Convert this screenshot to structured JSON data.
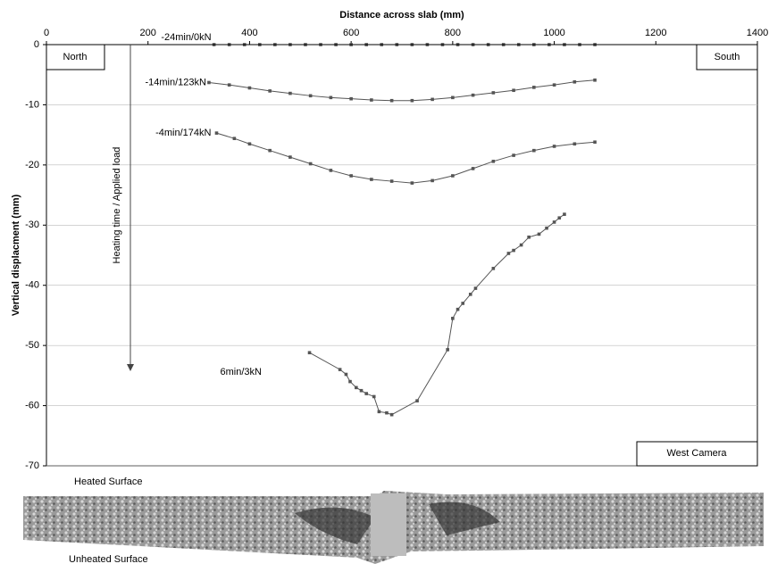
{
  "chart_data": {
    "type": "line",
    "x_label": "Distance across slab (mm)",
    "y_label": "Vertical displacment (mm)",
    "xlim": [
      0,
      1400
    ],
    "xticks": [
      0,
      200,
      400,
      600,
      800,
      1000,
      1200,
      1400
    ],
    "ylim": [
      -70,
      0
    ],
    "yticks": [
      0,
      -10,
      -20,
      -30,
      -40,
      -50,
      -60,
      -70
    ],
    "grid": true,
    "annotations": {
      "north": "North",
      "south": "South",
      "camera": "West Camera",
      "arrow": "Heating time / Applied load",
      "heated": "Heated Surface",
      "unheated": "Unheated Surface"
    },
    "series": [
      {
        "name": "-24min/0kN",
        "color": "#555555",
        "x": [
          330,
          360,
          390,
          420,
          450,
          480,
          510,
          540,
          570,
          600,
          630,
          660,
          690,
          720,
          750,
          780,
          810,
          840,
          870,
          900,
          930,
          960,
          990,
          1020,
          1050,
          1080
        ],
        "values": [
          0,
          0,
          0,
          0,
          0,
          0,
          0,
          0,
          0,
          0,
          0,
          0,
          0,
          0,
          0,
          0,
          0,
          0,
          0,
          0,
          0,
          0,
          0,
          0,
          0,
          0
        ]
      },
      {
        "name": "-14min/123kN",
        "color": "#555555",
        "x": [
          320,
          360,
          400,
          440,
          480,
          520,
          560,
          600,
          640,
          680,
          720,
          760,
          800,
          840,
          880,
          920,
          960,
          1000,
          1040,
          1080
        ],
        "values": [
          -6.3,
          -6.7,
          -7.2,
          -7.7,
          -8.1,
          -8.5,
          -8.8,
          -9.0,
          -9.2,
          -9.3,
          -9.3,
          -9.1,
          -8.8,
          -8.4,
          -8.0,
          -7.6,
          -7.1,
          -6.7,
          -6.2,
          -5.9
        ]
      },
      {
        "name": "-4min/174kN",
        "color": "#555555",
        "x": [
          335,
          370,
          400,
          440,
          480,
          520,
          560,
          600,
          640,
          680,
          720,
          760,
          800,
          840,
          880,
          920,
          960,
          1000,
          1040,
          1080
        ],
        "values": [
          -14.7,
          -15.6,
          -16.5,
          -17.6,
          -18.7,
          -19.8,
          -20.9,
          -21.8,
          -22.4,
          -22.7,
          -23.0,
          -22.6,
          -21.8,
          -20.6,
          -19.4,
          -18.4,
          -17.6,
          -16.9,
          -16.5,
          -16.2
        ]
      },
      {
        "name": "6min/3kN",
        "color": "#555555",
        "x": [
          518,
          578,
          590,
          598,
          610,
          620,
          630,
          645,
          655,
          670,
          680,
          730,
          790,
          800,
          810,
          820,
          835,
          845,
          880,
          910,
          920,
          935,
          950,
          970,
          985,
          1000,
          1010,
          1020
        ],
        "values": [
          -51.2,
          -54,
          -54.8,
          -56,
          -57,
          -57.5,
          -58,
          -58.5,
          -61,
          -61.2,
          -61.5,
          -59.2,
          -50.7,
          -45.5,
          -44,
          -43,
          -41.5,
          -40.5,
          -37.2,
          -34.7,
          -34.2,
          -33.3,
          -32,
          -31.5,
          -30.5,
          -29.5,
          -28.8,
          -28.2
        ]
      }
    ]
  }
}
